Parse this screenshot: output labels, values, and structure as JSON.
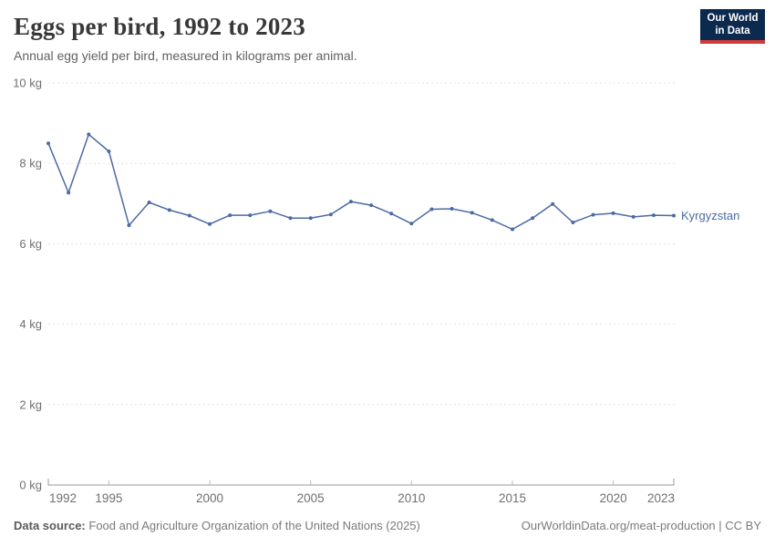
{
  "header": {
    "title": "Eggs per bird, 1992 to 2023",
    "subtitle": "Annual egg yield per bird, measured in kilograms per animal."
  },
  "logo": {
    "line1": "Our World",
    "line2": "in Data",
    "bg_color": "#0b2a4e",
    "accent_color": "#d13b3b"
  },
  "footer": {
    "source_label": "Data source:",
    "source_text": "Food and Agriculture Organization of the United Nations (2025)",
    "link_text": "OurWorldinData.org/meat-production | CC BY"
  },
  "chart_data": {
    "type": "line",
    "title": "Eggs per bird, 1992 to 2023",
    "subtitle": "Annual egg yield per bird, measured in kilograms per animal.",
    "xlabel": "",
    "ylabel": "",
    "unit": "kg",
    "ylim": [
      0,
      10
    ],
    "yticks": [
      0,
      2,
      4,
      6,
      8,
      10
    ],
    "ytick_suffix": " kg",
    "xticks": [
      1992,
      1995,
      2000,
      2005,
      2010,
      2015,
      2020,
      2023
    ],
    "grid": "horizontal-dashed",
    "legend_position": "end-of-line-label",
    "markers": true,
    "line_color": "#4c6ba3",
    "grid_color": "#e3e3e3",
    "axis_color": "#999999",
    "tick_label_color": "#6f6f6f",
    "x": [
      1992,
      1993,
      1994,
      1995,
      1996,
      1997,
      1998,
      1999,
      2000,
      2001,
      2002,
      2003,
      2004,
      2005,
      2006,
      2007,
      2008,
      2009,
      2010,
      2011,
      2012,
      2013,
      2014,
      2015,
      2016,
      2017,
      2018,
      2019,
      2020,
      2021,
      2022,
      2023
    ],
    "series": [
      {
        "name": "Kyrgyzstan",
        "values": [
          8.5,
          7.27,
          8.72,
          8.3,
          6.46,
          7.03,
          6.84,
          6.7,
          6.49,
          6.71,
          6.71,
          6.81,
          6.64,
          6.64,
          6.73,
          7.05,
          6.96,
          6.75,
          6.5,
          6.86,
          6.87,
          6.77,
          6.59,
          6.36,
          6.64,
          6.99,
          6.53,
          6.72,
          6.76,
          6.67,
          6.71,
          6.7
        ]
      }
    ]
  }
}
